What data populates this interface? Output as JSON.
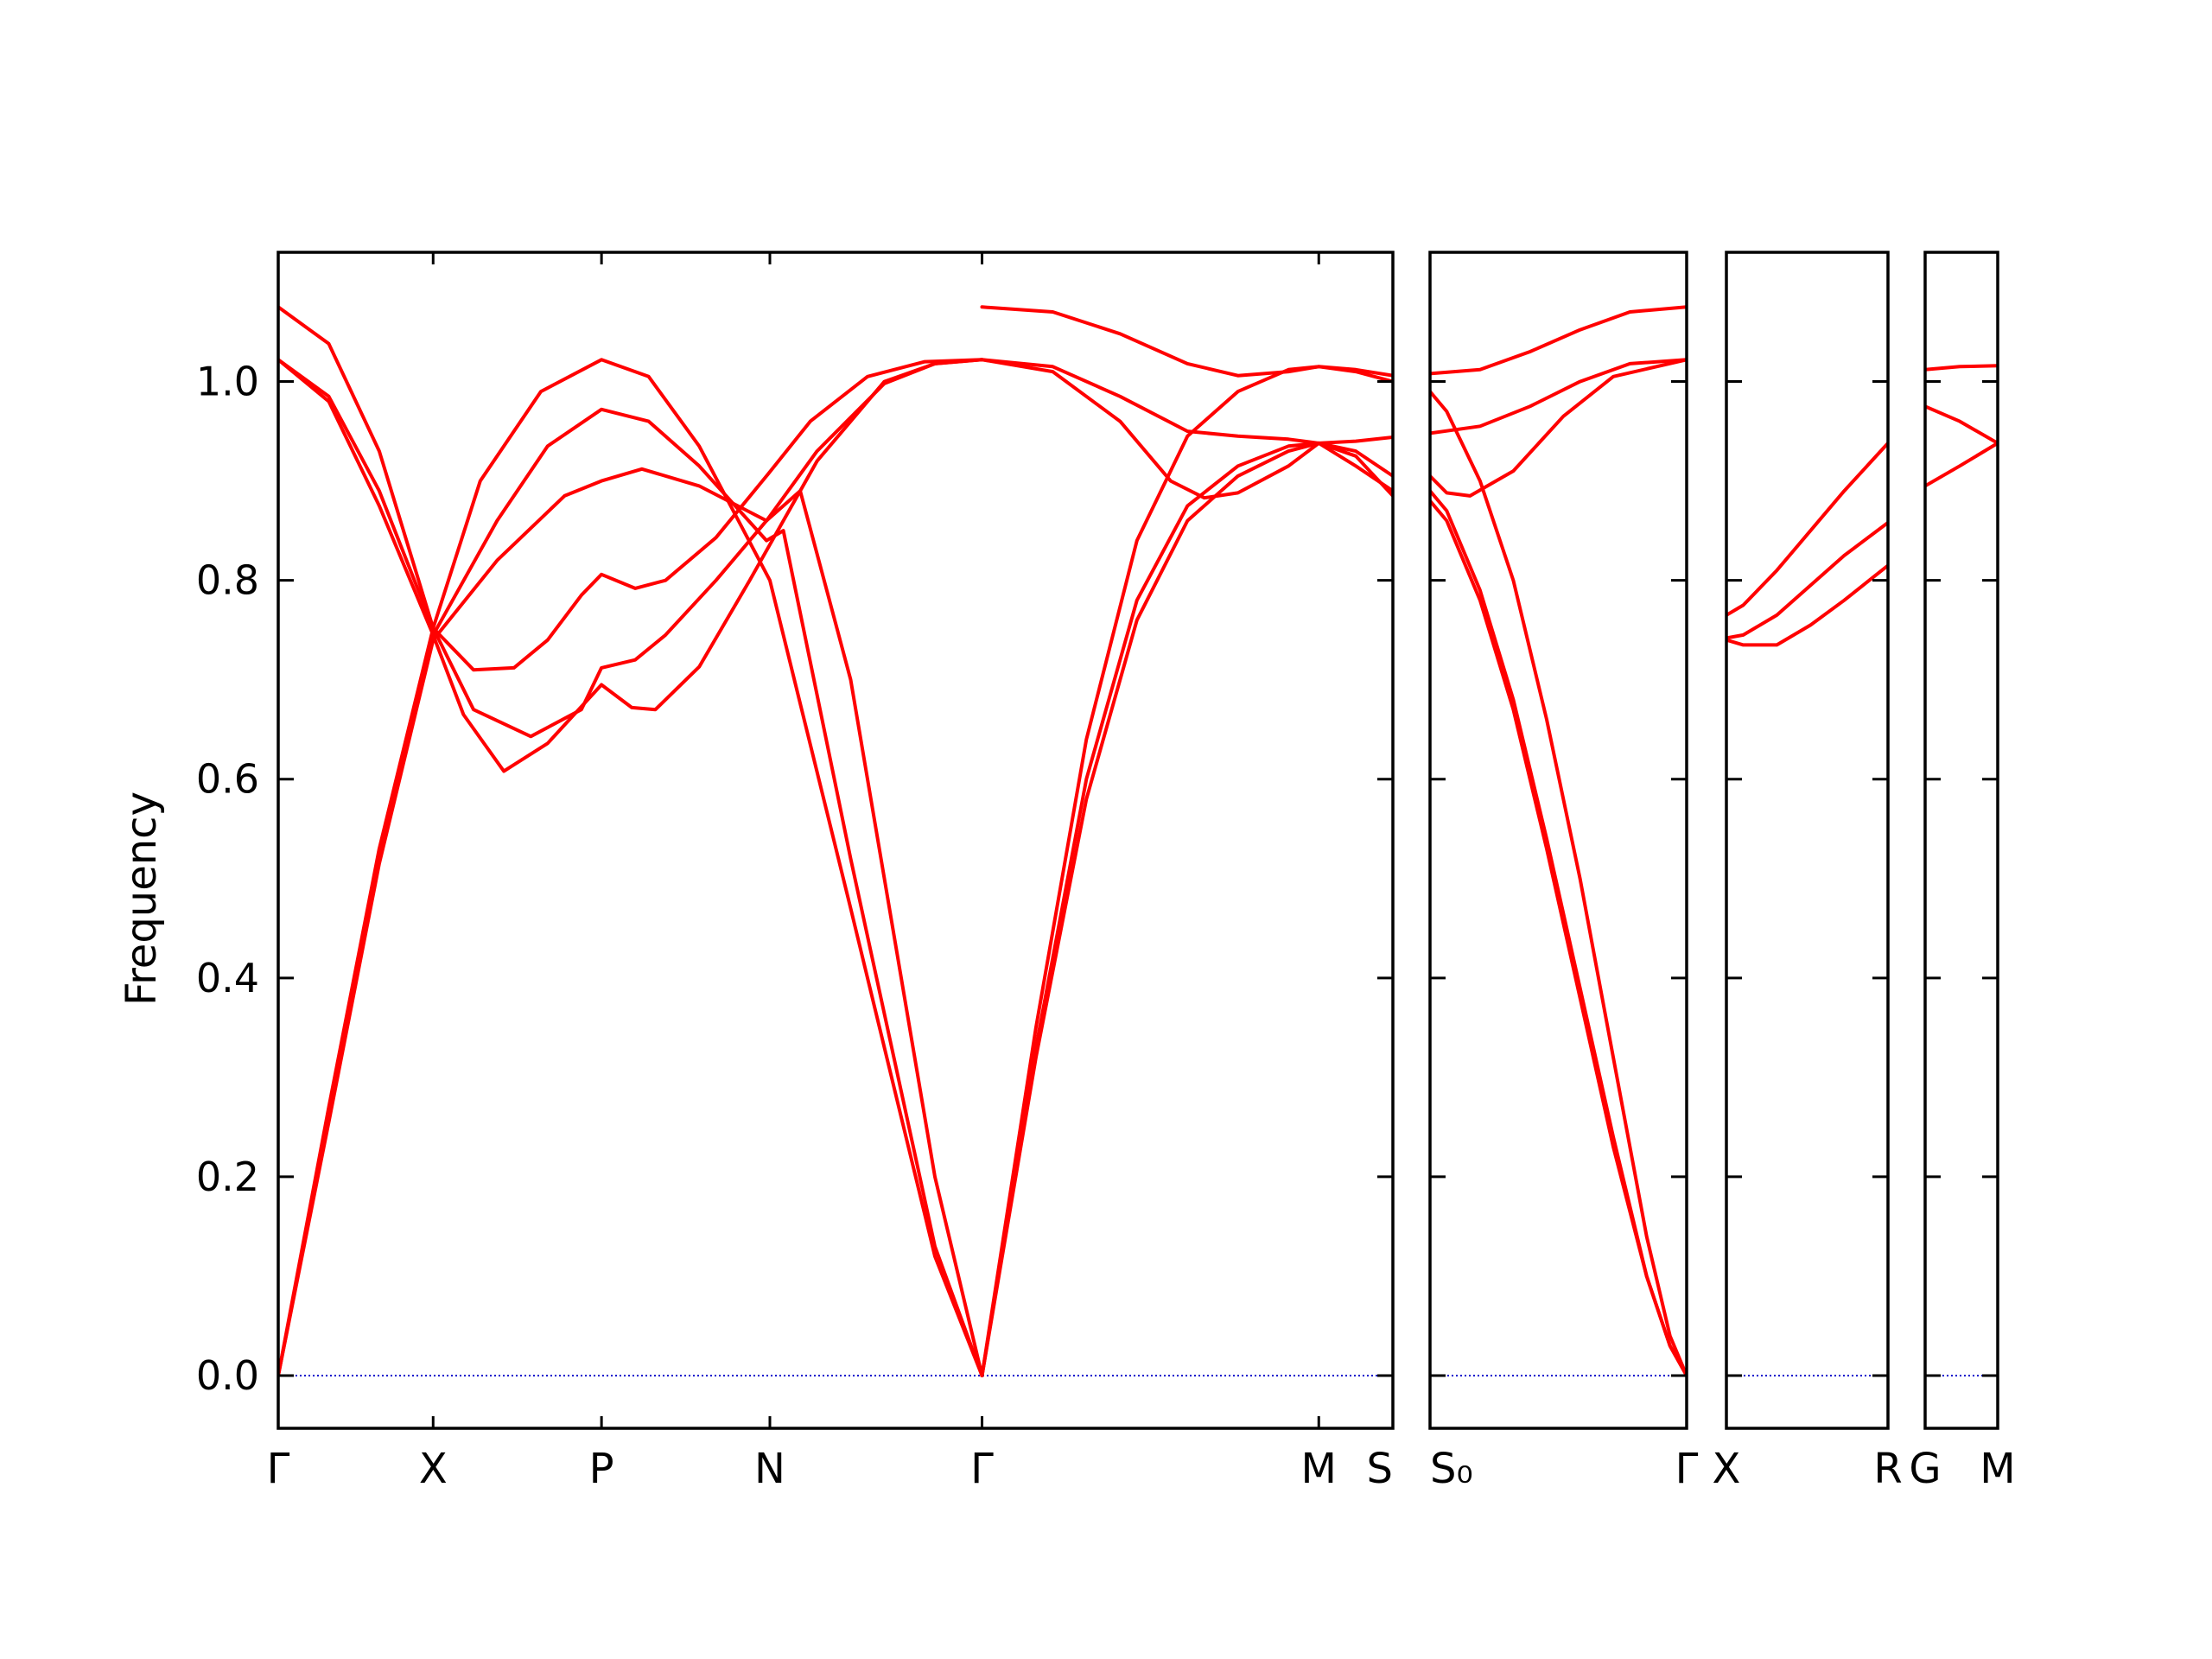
{
  "chart_data": {
    "type": "line",
    "title": "",
    "xlabel": "",
    "ylabel": "Frequency",
    "ylim": [
      -0.053,
      1.13
    ],
    "yticks": [
      0.0,
      0.2,
      0.4,
      0.6,
      0.8,
      1.0
    ],
    "ytick_labels": [
      "0.0",
      "0.2",
      "0.4",
      "0.6",
      "0.8",
      "1.0"
    ],
    "grid": false,
    "legend": "none",
    "colors": {
      "bands": "#ff0000",
      "zero_line": "#0000cc",
      "axes": "#000000"
    },
    "zero_line_style": "dotted",
    "panels": [
      {
        "xlim": [
          0.0,
          3.31
        ],
        "ticks": [
          {
            "x": 0.0,
            "label": "Γ"
          },
          {
            "x": 0.46,
            "label": "X"
          },
          {
            "x": 0.96,
            "label": "P"
          },
          {
            "x": 1.46,
            "label": "N"
          },
          {
            "x": 2.09,
            "label": "Γ"
          },
          {
            "x": 3.09,
            "label": "M"
          },
          {
            "x": 3.31,
            "label": "S"
          }
        ],
        "series": [
          {
            "x": [
              0,
              0.15,
              0.3,
              0.46,
              0.6,
              0.78,
              0.96,
              1.1,
              1.25,
              1.46,
              1.7,
              1.95,
              2.09
            ],
            "y": [
              0,
              0.27,
              0.53,
              0.752,
              0.9,
              0.99,
              1.022,
              1.005,
              0.935,
              0.8,
              0.47,
              0.12,
              0
            ]
          },
          {
            "x": [
              0,
              0.15,
              0.3,
              0.46,
              0.65,
              0.8,
              0.96,
              1.1,
              1.25,
              1.45,
              1.5,
              1.7,
              1.95,
              2.09
            ],
            "y": [
              0,
              0.26,
              0.52,
              0.745,
              0.86,
              0.935,
              0.972,
              0.96,
              0.915,
              0.84,
              0.85,
              0.52,
              0.13,
              0
            ]
          },
          {
            "x": [
              0,
              0.15,
              0.3,
              0.46,
              0.65,
              0.85,
              0.96,
              1.08,
              1.25,
              1.45,
              1.55,
              1.7,
              1.95,
              2.09
            ],
            "y": [
              0,
              0.255,
              0.515,
              0.74,
              0.82,
              0.885,
              0.9,
              0.912,
              0.895,
              0.86,
              0.89,
              0.7,
              0.2,
              0
            ]
          },
          {
            "x": [
              0,
              0.15,
              0.3,
              0.46,
              0.58,
              0.7,
              0.8,
              0.9,
              0.96,
              1.06,
              1.15,
              1.3,
              1.45,
              1.58,
              1.75,
              1.92,
              2.09
            ],
            "y": [
              1.022,
              0.985,
              0.89,
              0.752,
              0.71,
              0.712,
              0.74,
              0.785,
              0.806,
              0.792,
              0.8,
              0.843,
              0.905,
              0.96,
              1.005,
              1.02,
              1.022
            ]
          },
          {
            "x": [
              0,
              0.15,
              0.3,
              0.46,
              0.58,
              0.75,
              0.9,
              0.96,
              1.06,
              1.15,
              1.3,
              1.45,
              1.6,
              1.8,
              1.95,
              2.09
            ],
            "y": [
              1.075,
              1.038,
              0.93,
              0.752,
              0.67,
              0.643,
              0.67,
              0.712,
              0.72,
              0.745,
              0.8,
              0.86,
              0.93,
              0.998,
              1.018,
              1.022
            ]
          },
          {
            "x": [
              0,
              0.15,
              0.3,
              0.46,
              0.55,
              0.67,
              0.8,
              0.96,
              1.05,
              1.12,
              1.25,
              1.4,
              1.6,
              1.8,
              1.95,
              2.09
            ],
            "y": [
              1.022,
              0.98,
              0.875,
              0.745,
              0.665,
              0.608,
              0.636,
              0.695,
              0.672,
              0.67,
              0.713,
              0.8,
              0.92,
              1.0,
              1.018,
              1.022
            ]
          },
          {
            "x": [
              2.09,
              2.3,
              2.5,
              2.7,
              2.85,
              3.0,
              3.09,
              3.2,
              3.31
            ],
            "y": [
              1.075,
              1.07,
              1.048,
              1.018,
              1.006,
              1.01,
              1.015,
              1.012,
              1.006
            ]
          },
          {
            "x": [
              2.09,
              2.3,
              2.5,
              2.7,
              2.85,
              3.0,
              3.09,
              3.2,
              3.31
            ],
            "y": [
              1.022,
              1.015,
              0.985,
              0.95,
              0.945,
              0.942,
              0.938,
              0.94,
              0.944
            ]
          },
          {
            "x": [
              2.09,
              2.3,
              2.5,
              2.65,
              2.75,
              2.85,
              3.0,
              3.09,
              3.2,
              3.31
            ],
            "y": [
              1.022,
              1.01,
              0.96,
              0.9,
              0.883,
              0.888,
              0.915,
              0.938,
              0.925,
              0.885
            ]
          },
          {
            "x": [
              2.09,
              2.25,
              2.4,
              2.55,
              2.7,
              2.85,
              3.0,
              3.09,
              3.2,
              3.31
            ],
            "y": [
              0,
              0.35,
              0.64,
              0.84,
              0.945,
              0.99,
              1.012,
              1.015,
              1.01,
              1.0
            ]
          },
          {
            "x": [
              2.09,
              2.25,
              2.4,
              2.55,
              2.7,
              2.85,
              3.0,
              3.09,
              3.2,
              3.31
            ],
            "y": [
              0,
              0.33,
              0.6,
              0.78,
              0.875,
              0.915,
              0.935,
              0.938,
              0.93,
              0.905
            ]
          },
          {
            "x": [
              2.09,
              2.25,
              2.4,
              2.55,
              2.7,
              2.85,
              3.0,
              3.09,
              3.2,
              3.31
            ],
            "y": [
              0,
              0.32,
              0.58,
              0.76,
              0.86,
              0.905,
              0.93,
              0.938,
              0.915,
              0.89
            ]
          }
        ]
      },
      {
        "xlim": [
          0.0,
          0.77
        ],
        "ticks": [
          {
            "x": 0.0,
            "label": "S₀"
          },
          {
            "x": 0.77,
            "label": "Γ"
          }
        ],
        "series": [
          {
            "x": [
              0,
              0.15,
              0.3,
              0.45,
              0.6,
              0.77
            ],
            "y": [
              1.008,
              1.012,
              1.03,
              1.052,
              1.07,
              1.075
            ]
          },
          {
            "x": [
              0,
              0.15,
              0.3,
              0.45,
              0.6,
              0.77
            ],
            "y": [
              0.948,
              0.955,
              0.975,
              1.0,
              1.018,
              1.022
            ]
          },
          {
            "x": [
              0,
              0.05,
              0.12,
              0.25,
              0.4,
              0.55,
              0.77
            ],
            "y": [
              0.905,
              0.888,
              0.885,
              0.91,
              0.965,
              1.005,
              1.022
            ]
          },
          {
            "x": [
              0,
              0.05,
              0.15,
              0.25,
              0.35,
              0.45,
              0.55,
              0.65,
              0.72,
              0.77
            ],
            "y": [
              0.99,
              0.97,
              0.9,
              0.8,
              0.66,
              0.5,
              0.32,
              0.14,
              0.04,
              0
            ]
          },
          {
            "x": [
              0,
              0.05,
              0.15,
              0.25,
              0.35,
              0.45,
              0.55,
              0.65,
              0.72,
              0.77
            ],
            "y": [
              0.89,
              0.87,
              0.79,
              0.68,
              0.54,
              0.39,
              0.24,
              0.1,
              0.03,
              0
            ]
          },
          {
            "x": [
              0,
              0.05,
              0.15,
              0.25,
              0.35,
              0.45,
              0.55,
              0.65,
              0.72,
              0.77
            ],
            "y": [
              0.88,
              0.86,
              0.78,
              0.67,
              0.53,
              0.38,
              0.23,
              0.1,
              0.03,
              0
            ]
          }
        ]
      },
      {
        "xlim": [
          0.0,
          0.48
        ],
        "ticks": [
          {
            "x": 0.0,
            "label": "X"
          },
          {
            "x": 0.48,
            "label": "R"
          }
        ],
        "series": [
          {
            "x": [
              0,
              0.05,
              0.15,
              0.25,
              0.35,
              0.48
            ],
            "y": [
              0.765,
              0.775,
              0.81,
              0.85,
              0.89,
              0.938
            ]
          },
          {
            "x": [
              0,
              0.05,
              0.15,
              0.25,
              0.35,
              0.48
            ],
            "y": [
              0.742,
              0.745,
              0.765,
              0.795,
              0.825,
              0.858
            ]
          },
          {
            "x": [
              0,
              0.05,
              0.15,
              0.25,
              0.35,
              0.48
            ],
            "y": [
              0.74,
              0.735,
              0.735,
              0.755,
              0.78,
              0.815
            ]
          }
        ]
      },
      {
        "xlim": [
          0.0,
          0.21
        ],
        "ticks": [
          {
            "x": 0.0,
            "label": "G"
          },
          {
            "x": 0.21,
            "label": "M"
          }
        ],
        "series": [
          {
            "x": [
              0,
              0.1,
              0.21
            ],
            "y": [
              1.012,
              1.015,
              1.016
            ]
          },
          {
            "x": [
              0,
              0.1,
              0.21
            ],
            "y": [
              0.975,
              0.96,
              0.938
            ]
          },
          {
            "x": [
              0,
              0.1,
              0.21
            ],
            "y": [
              0.895,
              0.915,
              0.938
            ]
          }
        ]
      }
    ]
  }
}
